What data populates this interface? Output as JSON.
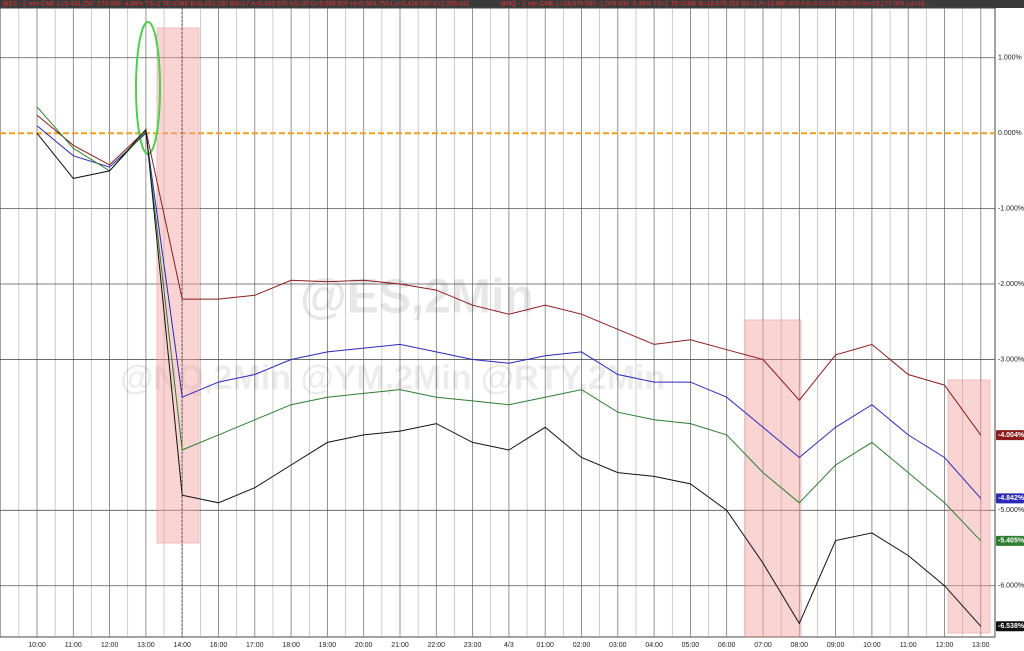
{
  "header": [
    "@ES - 2 min CME  L=5,433.250  -279.000  -4.88%  TS=2  TE=CME  B=5,433.250  BS=17  A=5,433.500  AS=35  O=5,558.500  Hi=5,564.750  Lo=5,428.500  V=2,256,041",
    "@NQ - 2 min CME  L=18,679.500  -1,078.500  -5.46%  TS=1  TE=CME  B=18,679.250  BS=1  A=18,680.000  AS=3  O=19,020.000  Hi=19,177.000  Lo=18,..."
  ],
  "chart_data": {
    "type": "line",
    "watermarks": [
      "@ES,2Min",
      "@NQ,2Min  @YM,2Min  @RTY,2Min"
    ],
    "categories": [
      "10:00",
      "11:00",
      "12:00",
      "13:00",
      "14:00",
      "16:00",
      "17:00",
      "18:00",
      "19:00",
      "20:00",
      "21:00",
      "22:00",
      "23:00",
      "4/3",
      "01:00",
      "02:00",
      "03:00",
      "04:00",
      "05:00",
      "06:00",
      "07:00",
      "08:00",
      "09:00",
      "10:00",
      "11:00",
      "12:00",
      "13:00"
    ],
    "series": [
      {
        "color": "#8b1c1c",
        "values": [
          0.24,
          -0.16,
          -0.42,
          0.04,
          -2.2,
          -2.2,
          -2.15,
          -1.95,
          -1.97,
          -1.95,
          -2.0,
          -2.08,
          -2.28,
          -2.4,
          -2.28,
          -2.4,
          -2.6,
          -2.8,
          -2.74,
          -2.87,
          -3.0,
          -3.54,
          -2.94,
          -2.8,
          -3.2,
          -3.34,
          -4.004
        ],
        "value_labels": [
          null,
          null,
          null,
          null,
          null,
          null,
          null,
          null,
          null,
          null,
          null,
          null,
          null,
          null,
          null,
          null,
          null,
          null,
          null,
          null,
          null,
          null,
          null,
          null,
          null,
          null,
          "-4.004%"
        ]
      },
      {
        "color": "#2a2ab8",
        "values": [
          0.1,
          -0.3,
          -0.45,
          0.0,
          -3.5,
          -3.3,
          -3.2,
          -3.0,
          -2.9,
          -2.85,
          -2.8,
          -2.9,
          -3.0,
          -3.05,
          -2.95,
          -2.9,
          -3.2,
          -3.3,
          -3.3,
          -3.5,
          -3.9,
          -4.3,
          -3.9,
          -3.6,
          -4.0,
          -4.3,
          -4.842
        ],
        "value_labels": [
          null,
          null,
          null,
          null,
          null,
          null,
          null,
          null,
          null,
          null,
          null,
          null,
          null,
          null,
          null,
          null,
          null,
          null,
          null,
          null,
          null,
          null,
          null,
          null,
          null,
          null,
          "-4.842%"
        ]
      },
      {
        "color": "#2e7d2e",
        "values": [
          0.35,
          -0.2,
          -0.5,
          0.02,
          -4.2,
          -4.0,
          -3.8,
          -3.6,
          -3.5,
          -3.45,
          -3.4,
          -3.5,
          -3.55,
          -3.6,
          -3.5,
          -3.4,
          -3.7,
          -3.8,
          -3.85,
          -4.0,
          -4.5,
          -4.9,
          -4.4,
          -4.1,
          -4.5,
          -4.9,
          -5.405
        ],
        "value_labels": [
          null,
          null,
          null,
          null,
          null,
          null,
          null,
          null,
          null,
          null,
          null,
          null,
          null,
          null,
          null,
          null,
          null,
          null,
          null,
          null,
          null,
          null,
          null,
          null,
          null,
          null,
          "-5.405%"
        ]
      },
      {
        "color": "#111111",
        "values": [
          0.0,
          -0.6,
          -0.5,
          0.05,
          -4.8,
          -4.9,
          -4.7,
          -4.4,
          -4.1,
          -4.0,
          -3.95,
          -3.85,
          -4.1,
          -4.2,
          -3.9,
          -4.3,
          -4.5,
          -4.55,
          -4.65,
          -5.0,
          -5.7,
          -6.5,
          -5.4,
          -5.3,
          -5.6,
          -6.0,
          -6.538
        ],
        "value_labels": [
          null,
          null,
          null,
          null,
          null,
          null,
          null,
          null,
          null,
          null,
          null,
          null,
          null,
          null,
          null,
          null,
          null,
          null,
          null,
          null,
          null,
          null,
          null,
          null,
          null,
          null,
          "-6.538%"
        ]
      }
    ],
    "ylim": [
      -6.68,
      1.66
    ],
    "yticks": [
      {
        "value": 1,
        "label": "1.000%"
      },
      {
        "value": 0,
        "label": "0.000%"
      },
      {
        "value": -1,
        "label": "-1.000%"
      },
      {
        "value": -2,
        "label": "-2.000%"
      },
      {
        "value": -3,
        "label": "-3.000%"
      },
      {
        "value": -5,
        "label": "-5.000%"
      },
      {
        "value": -6,
        "label": "-6.000%"
      }
    ],
    "grid": true,
    "zero_line_color": "#f0a020"
  }
}
